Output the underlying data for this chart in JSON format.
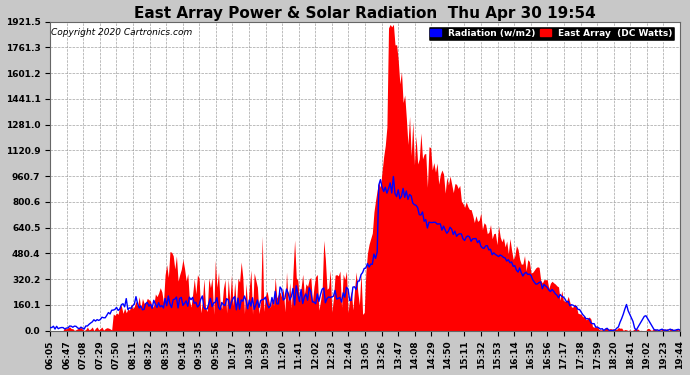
{
  "title": "East Array Power & Solar Radiation  Thu Apr 30 19:54",
  "copyright": "Copyright 2020 Cartronics.com",
  "legend_label_radiation": "Radiation (w/m2)",
  "legend_label_east": "East Array  (DC Watts)",
  "y_ticks": [
    0.0,
    160.1,
    320.2,
    480.4,
    640.5,
    800.6,
    960.7,
    1120.9,
    1281.0,
    1441.1,
    1601.2,
    1761.3,
    1921.5
  ],
  "y_max": 1921.5,
  "background_color": "#c8c8c8",
  "plot_bg_color": "#ffffff",
  "grid_color": "#999999",
  "title_fontsize": 11,
  "tick_fontsize": 6.5,
  "x_tick_labels": [
    "06:05",
    "06:47",
    "07:08",
    "07:29",
    "07:50",
    "08:11",
    "08:32",
    "08:53",
    "09:14",
    "09:35",
    "09:56",
    "10:17",
    "10:38",
    "10:59",
    "11:20",
    "11:41",
    "12:02",
    "12:23",
    "12:44",
    "13:05",
    "13:26",
    "13:47",
    "14:08",
    "14:29",
    "14:50",
    "15:11",
    "15:32",
    "15:53",
    "16:14",
    "16:35",
    "16:56",
    "17:17",
    "17:38",
    "17:59",
    "18:20",
    "18:41",
    "19:02",
    "19:23",
    "19:44"
  ]
}
